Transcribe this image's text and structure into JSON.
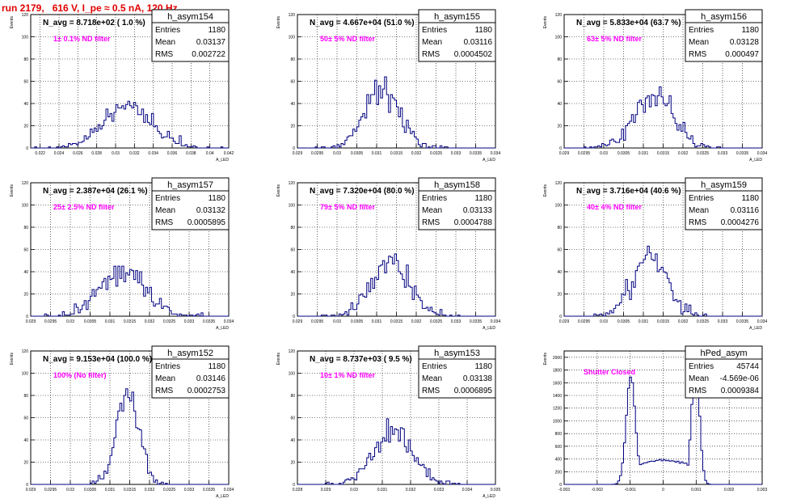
{
  "page": {
    "title": "run 2179,   616 V, I_pe ≈ 0.5 nA, 120 Hz"
  },
  "colors": {
    "histogram": "#000080",
    "navg_text": "#000000",
    "filter_text": "#ff00ff",
    "title_text": "#e00000",
    "grid": "#000000"
  },
  "stat_labels": {
    "entries": "Entries",
    "mean": "Mean",
    "rms": "RMS"
  },
  "chart_data": [
    {
      "type": "bar",
      "name": "h_asym154",
      "navg": "N_avg = 8.718e+02 ( 1.0 %)",
      "filter": "1± 0.1% ND filter",
      "stats": {
        "entries": "1180",
        "mean": "0.03137",
        "rms": "0.002722"
      },
      "ylabel": "Events",
      "xlabel": "A_LED",
      "xlim": [
        0.021,
        0.042
      ],
      "ylim": [
        0,
        120
      ],
      "xticks": [
        0.022,
        0.024,
        0.026,
        0.028,
        0.03,
        0.032,
        0.034,
        0.036,
        0.038,
        0.04,
        0.042
      ],
      "yticks": [
        0,
        20,
        40,
        60,
        80,
        100,
        120
      ],
      "gauss": {
        "n": 1180,
        "mu": 0.0313,
        "sigma": 0.0027,
        "bins": 100,
        "seed": 11
      }
    },
    {
      "type": "bar",
      "name": "h_asym155",
      "navg": "N_avg = 4.667e+04 (51.0 %)",
      "filter": "50± 5% ND filter",
      "stats": {
        "entries": "1180",
        "mean": "0.03116",
        "rms": "0.0004502"
      },
      "ylabel": "Events",
      "xlabel": "A_LED",
      "xlim": [
        0.029,
        0.034
      ],
      "ylim": [
        0,
        120
      ],
      "xticks": [
        0.029,
        0.0295,
        0.03,
        0.0305,
        0.031,
        0.0315,
        0.032,
        0.0325,
        0.033,
        0.0335,
        0.034
      ],
      "yticks": [
        0,
        20,
        40,
        60,
        80,
        100,
        120
      ],
      "gauss": {
        "n": 1180,
        "mu": 0.03116,
        "sigma": 0.00045,
        "bins": 100,
        "seed": 22
      }
    },
    {
      "type": "bar",
      "name": "h_asym156",
      "navg": "N_avg = 5.833e+04 (63.7 %)",
      "filter": "63± 5% ND filter",
      "stats": {
        "entries": "1180",
        "mean": "0.03128",
        "rms": "0.000497"
      },
      "ylabel": "Events",
      "xlabel": "A_LED",
      "xlim": [
        0.029,
        0.034
      ],
      "ylim": [
        0,
        120
      ],
      "xticks": [
        0.029,
        0.0295,
        0.03,
        0.0305,
        0.031,
        0.0315,
        0.032,
        0.0325,
        0.033,
        0.0335,
        0.034
      ],
      "yticks": [
        0,
        20,
        40,
        60,
        80,
        100,
        120
      ],
      "gauss": {
        "n": 1180,
        "mu": 0.03128,
        "sigma": 0.0005,
        "bins": 100,
        "seed": 33
      }
    },
    {
      "type": "bar",
      "name": "h_asym157",
      "navg": "N_avg = 2.387e+04 (26.1 %)",
      "filter": "25± 2.5% ND filter",
      "stats": {
        "entries": "1180",
        "mean": "0.03132",
        "rms": "0.0005895"
      },
      "ylabel": "Events",
      "xlabel": "A_LED",
      "xlim": [
        0.029,
        0.034
      ],
      "ylim": [
        0,
        120
      ],
      "xticks": [
        0.029,
        0.0295,
        0.03,
        0.0305,
        0.031,
        0.0315,
        0.032,
        0.0325,
        0.033,
        0.0335,
        0.034
      ],
      "yticks": [
        0,
        20,
        40,
        60,
        80,
        100,
        120
      ],
      "gauss": {
        "n": 1180,
        "mu": 0.03132,
        "sigma": 0.00059,
        "bins": 100,
        "seed": 44
      }
    },
    {
      "type": "bar",
      "name": "h_asym158",
      "navg": "N_avg = 7.320e+04 (80.0 %)",
      "filter": "79± 5% ND filter",
      "stats": {
        "entries": "1180",
        "mean": "0.03133",
        "rms": "0.0004788"
      },
      "ylabel": "Events",
      "xlabel": "A_LED",
      "xlim": [
        0.029,
        0.034
      ],
      "ylim": [
        0,
        120
      ],
      "xticks": [
        0.029,
        0.0295,
        0.03,
        0.0305,
        0.031,
        0.0315,
        0.032,
        0.0325,
        0.033,
        0.0335,
        0.034
      ],
      "yticks": [
        0,
        20,
        40,
        60,
        80,
        100,
        120
      ],
      "gauss": {
        "n": 1180,
        "mu": 0.03133,
        "sigma": 0.00048,
        "bins": 100,
        "seed": 55
      }
    },
    {
      "type": "bar",
      "name": "h_asym159",
      "navg": "N_avg = 3.716e+04 (40.6 %)",
      "filter": "40± 4% ND filter",
      "stats": {
        "entries": "1180",
        "mean": "0.03116",
        "rms": "0.0004276"
      },
      "ylabel": "Events",
      "xlabel": "A_LED",
      "xlim": [
        0.029,
        0.034
      ],
      "ylim": [
        0,
        120
      ],
      "xticks": [
        0.029,
        0.0295,
        0.03,
        0.0305,
        0.031,
        0.0315,
        0.032,
        0.0325,
        0.033,
        0.0335,
        0.034
      ],
      "yticks": [
        0,
        20,
        40,
        60,
        80,
        100,
        120
      ],
      "gauss": {
        "n": 1180,
        "mu": 0.03116,
        "sigma": 0.00043,
        "bins": 100,
        "seed": 66
      }
    },
    {
      "type": "bar",
      "name": "h_asym152",
      "navg": "N_avg = 9.153e+04 (100.0 %)",
      "filter": "100% (No filter)",
      "stats": {
        "entries": "1180",
        "mean": "0.03146",
        "rms": "0.0002753"
      },
      "ylabel": "Events",
      "xlabel": "A_LED",
      "xlim": [
        0.029,
        0.034
      ],
      "ylim": [
        0,
        120
      ],
      "xticks": [
        0.029,
        0.0295,
        0.03,
        0.0305,
        0.031,
        0.0315,
        0.032,
        0.0325,
        0.033,
        0.0335,
        0.034
      ],
      "yticks": [
        0,
        20,
        40,
        60,
        80,
        100,
        120
      ],
      "gauss": {
        "n": 1180,
        "mu": 0.03146,
        "sigma": 0.000275,
        "bins": 100,
        "seed": 77
      }
    },
    {
      "type": "bar",
      "name": "h_asym153",
      "navg": "N_avg = 8.737e+03 ( 9.5 %)",
      "filter": "10± 1% ND filter",
      "stats": {
        "entries": "1180",
        "mean": "0.03138",
        "rms": "0.0006895"
      },
      "ylabel": "Events",
      "xlabel": "A_LED",
      "xlim": [
        0.028,
        0.035
      ],
      "ylim": [
        0,
        120
      ],
      "xticks": [
        0.028,
        0.029,
        0.03,
        0.031,
        0.032,
        0.033,
        0.034,
        0.035
      ],
      "yticks": [
        0,
        20,
        40,
        60,
        80,
        100,
        120
      ],
      "gauss": {
        "n": 1180,
        "mu": 0.03138,
        "sigma": 0.00069,
        "bins": 100,
        "seed": 88
      }
    },
    {
      "type": "bar",
      "name": "hPed_asym",
      "navg": "",
      "filter": "Shutter Closed",
      "stats": {
        "entries": "45744",
        "mean": "-4.569e-06",
        "rms": "0.0009384"
      },
      "ylabel": "Events",
      "xlabel": "",
      "xlim": [
        -0.003,
        0.003
      ],
      "ylim": [
        0,
        2100
      ],
      "xticks": [
        -0.003,
        -0.002,
        -0.001,
        0,
        0.001,
        0.002,
        0.003
      ],
      "yticks": [
        0,
        200,
        400,
        600,
        800,
        1000,
        1200,
        1400,
        1600,
        1800,
        2000
      ],
      "peds": {
        "bins": 100,
        "peaks": [
          {
            "mu": -0.00098,
            "sigma": 0.00014,
            "amp": 1680
          },
          {
            "mu": 0.00098,
            "sigma": 0.00012,
            "amp": 1900
          }
        ],
        "base": 380,
        "seed": 99
      }
    }
  ]
}
